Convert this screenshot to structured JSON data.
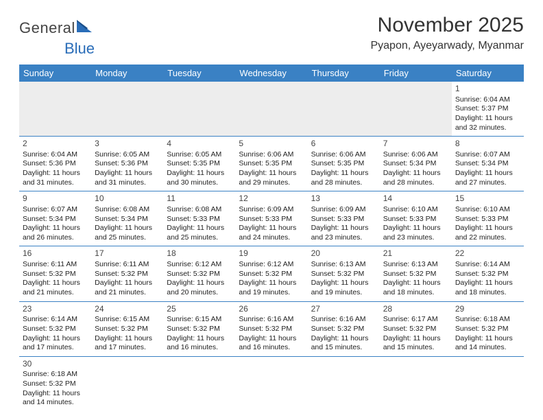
{
  "logo": {
    "part1": "General",
    "part2": "Blue"
  },
  "header": {
    "month_title": "November 2025",
    "location": "Pyapon, Ayeyarwady, Myanmar"
  },
  "colors": {
    "header_bg": "#3a81c4",
    "header_text": "#ffffff",
    "row_divider": "#3a81c4",
    "empty_bg": "#ededed",
    "logo_blue": "#2a6db8",
    "logo_gray": "#454545"
  },
  "days_of_week": [
    "Sunday",
    "Monday",
    "Tuesday",
    "Wednesday",
    "Thursday",
    "Friday",
    "Saturday"
  ],
  "weeks": [
    [
      null,
      null,
      null,
      null,
      null,
      null,
      {
        "n": "1",
        "sunrise": "Sunrise: 6:04 AM",
        "sunset": "Sunset: 5:37 PM",
        "daylight": "Daylight: 11 hours and 32 minutes."
      }
    ],
    [
      {
        "n": "2",
        "sunrise": "Sunrise: 6:04 AM",
        "sunset": "Sunset: 5:36 PM",
        "daylight": "Daylight: 11 hours and 31 minutes."
      },
      {
        "n": "3",
        "sunrise": "Sunrise: 6:05 AM",
        "sunset": "Sunset: 5:36 PM",
        "daylight": "Daylight: 11 hours and 31 minutes."
      },
      {
        "n": "4",
        "sunrise": "Sunrise: 6:05 AM",
        "sunset": "Sunset: 5:35 PM",
        "daylight": "Daylight: 11 hours and 30 minutes."
      },
      {
        "n": "5",
        "sunrise": "Sunrise: 6:06 AM",
        "sunset": "Sunset: 5:35 PM",
        "daylight": "Daylight: 11 hours and 29 minutes."
      },
      {
        "n": "6",
        "sunrise": "Sunrise: 6:06 AM",
        "sunset": "Sunset: 5:35 PM",
        "daylight": "Daylight: 11 hours and 28 minutes."
      },
      {
        "n": "7",
        "sunrise": "Sunrise: 6:06 AM",
        "sunset": "Sunset: 5:34 PM",
        "daylight": "Daylight: 11 hours and 28 minutes."
      },
      {
        "n": "8",
        "sunrise": "Sunrise: 6:07 AM",
        "sunset": "Sunset: 5:34 PM",
        "daylight": "Daylight: 11 hours and 27 minutes."
      }
    ],
    [
      {
        "n": "9",
        "sunrise": "Sunrise: 6:07 AM",
        "sunset": "Sunset: 5:34 PM",
        "daylight": "Daylight: 11 hours and 26 minutes."
      },
      {
        "n": "10",
        "sunrise": "Sunrise: 6:08 AM",
        "sunset": "Sunset: 5:34 PM",
        "daylight": "Daylight: 11 hours and 25 minutes."
      },
      {
        "n": "11",
        "sunrise": "Sunrise: 6:08 AM",
        "sunset": "Sunset: 5:33 PM",
        "daylight": "Daylight: 11 hours and 25 minutes."
      },
      {
        "n": "12",
        "sunrise": "Sunrise: 6:09 AM",
        "sunset": "Sunset: 5:33 PM",
        "daylight": "Daylight: 11 hours and 24 minutes."
      },
      {
        "n": "13",
        "sunrise": "Sunrise: 6:09 AM",
        "sunset": "Sunset: 5:33 PM",
        "daylight": "Daylight: 11 hours and 23 minutes."
      },
      {
        "n": "14",
        "sunrise": "Sunrise: 6:10 AM",
        "sunset": "Sunset: 5:33 PM",
        "daylight": "Daylight: 11 hours and 23 minutes."
      },
      {
        "n": "15",
        "sunrise": "Sunrise: 6:10 AM",
        "sunset": "Sunset: 5:33 PM",
        "daylight": "Daylight: 11 hours and 22 minutes."
      }
    ],
    [
      {
        "n": "16",
        "sunrise": "Sunrise: 6:11 AM",
        "sunset": "Sunset: 5:32 PM",
        "daylight": "Daylight: 11 hours and 21 minutes."
      },
      {
        "n": "17",
        "sunrise": "Sunrise: 6:11 AM",
        "sunset": "Sunset: 5:32 PM",
        "daylight": "Daylight: 11 hours and 21 minutes."
      },
      {
        "n": "18",
        "sunrise": "Sunrise: 6:12 AM",
        "sunset": "Sunset: 5:32 PM",
        "daylight": "Daylight: 11 hours and 20 minutes."
      },
      {
        "n": "19",
        "sunrise": "Sunrise: 6:12 AM",
        "sunset": "Sunset: 5:32 PM",
        "daylight": "Daylight: 11 hours and 19 minutes."
      },
      {
        "n": "20",
        "sunrise": "Sunrise: 6:13 AM",
        "sunset": "Sunset: 5:32 PM",
        "daylight": "Daylight: 11 hours and 19 minutes."
      },
      {
        "n": "21",
        "sunrise": "Sunrise: 6:13 AM",
        "sunset": "Sunset: 5:32 PM",
        "daylight": "Daylight: 11 hours and 18 minutes."
      },
      {
        "n": "22",
        "sunrise": "Sunrise: 6:14 AM",
        "sunset": "Sunset: 5:32 PM",
        "daylight": "Daylight: 11 hours and 18 minutes."
      }
    ],
    [
      {
        "n": "23",
        "sunrise": "Sunrise: 6:14 AM",
        "sunset": "Sunset: 5:32 PM",
        "daylight": "Daylight: 11 hours and 17 minutes."
      },
      {
        "n": "24",
        "sunrise": "Sunrise: 6:15 AM",
        "sunset": "Sunset: 5:32 PM",
        "daylight": "Daylight: 11 hours and 17 minutes."
      },
      {
        "n": "25",
        "sunrise": "Sunrise: 6:15 AM",
        "sunset": "Sunset: 5:32 PM",
        "daylight": "Daylight: 11 hours and 16 minutes."
      },
      {
        "n": "26",
        "sunrise": "Sunrise: 6:16 AM",
        "sunset": "Sunset: 5:32 PM",
        "daylight": "Daylight: 11 hours and 16 minutes."
      },
      {
        "n": "27",
        "sunrise": "Sunrise: 6:16 AM",
        "sunset": "Sunset: 5:32 PM",
        "daylight": "Daylight: 11 hours and 15 minutes."
      },
      {
        "n": "28",
        "sunrise": "Sunrise: 6:17 AM",
        "sunset": "Sunset: 5:32 PM",
        "daylight": "Daylight: 11 hours and 15 minutes."
      },
      {
        "n": "29",
        "sunrise": "Sunrise: 6:18 AM",
        "sunset": "Sunset: 5:32 PM",
        "daylight": "Daylight: 11 hours and 14 minutes."
      }
    ],
    [
      {
        "n": "30",
        "sunrise": "Sunrise: 6:18 AM",
        "sunset": "Sunset: 5:32 PM",
        "daylight": "Daylight: 11 hours and 14 minutes."
      },
      null,
      null,
      null,
      null,
      null,
      null
    ]
  ]
}
